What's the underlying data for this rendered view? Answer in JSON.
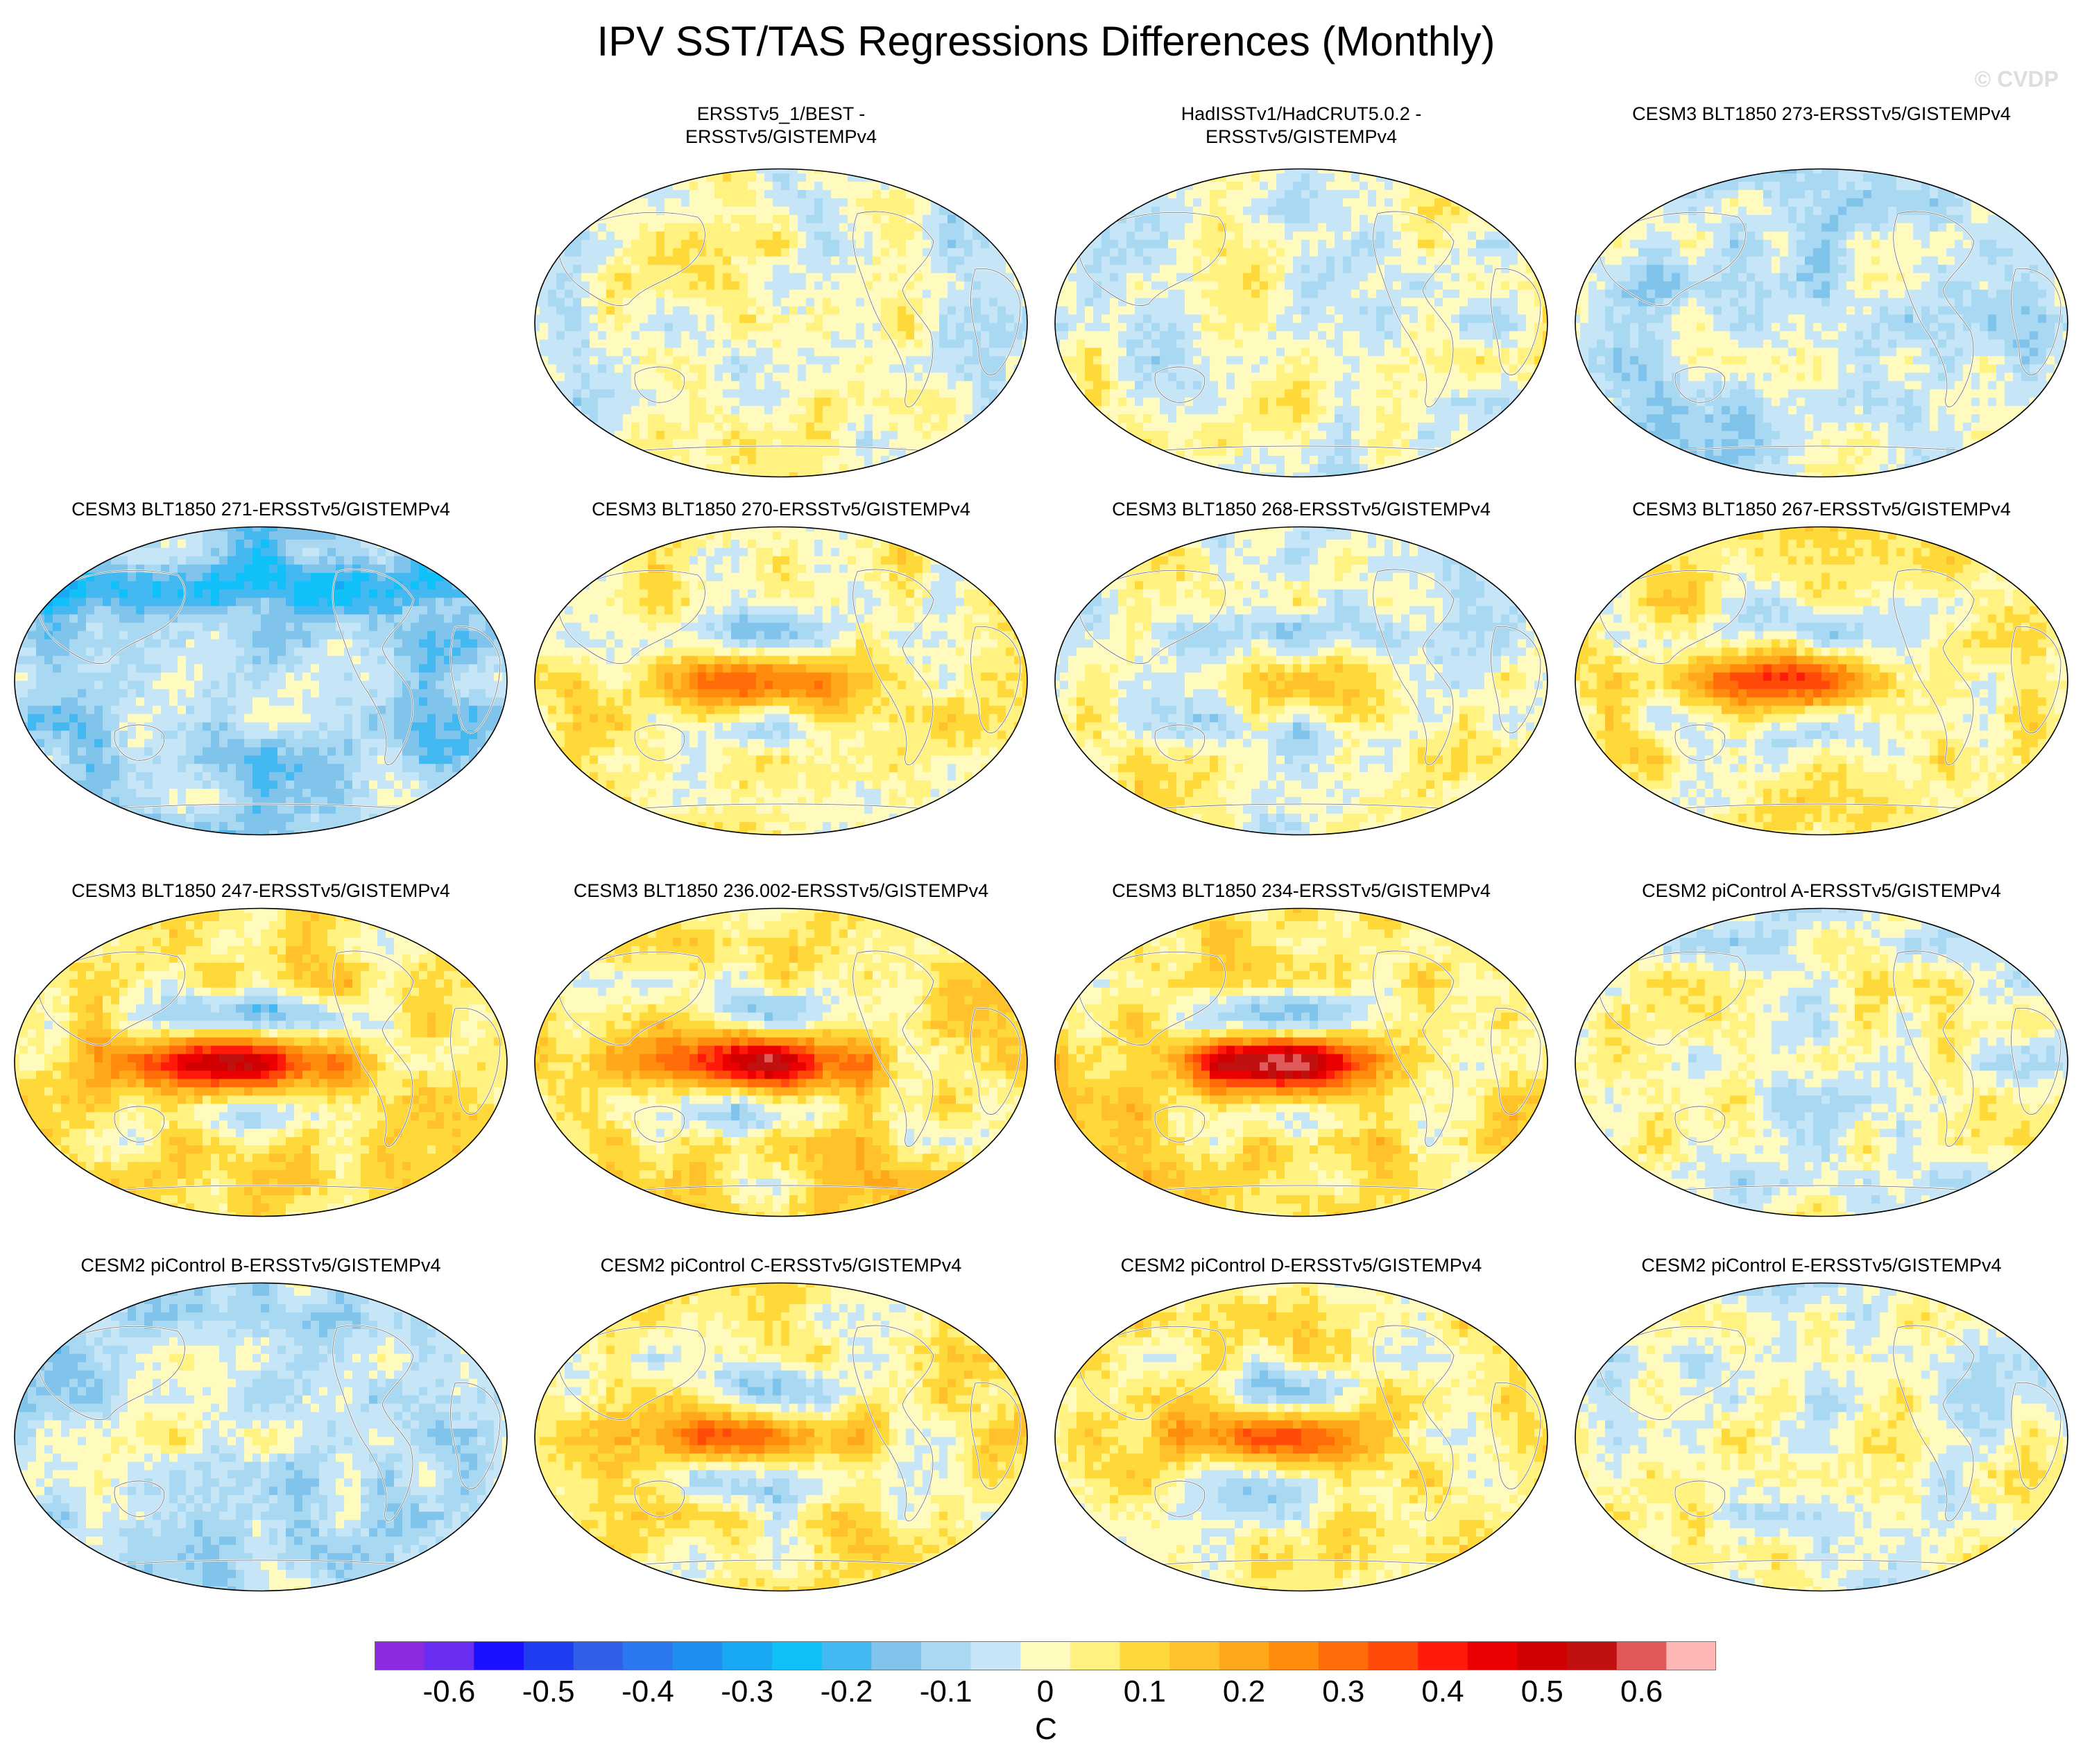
{
  "title": "IPV SST/TAS Regressions Differences (Monthly)",
  "watermark": "© CVDP",
  "panels": [
    {
      "title": "ERSSTv5_1/BEST -\nERSSTv5/GISTEMPv4",
      "pattern": "weak-mixed",
      "seed": 11
    },
    {
      "title": "HadISSTv1/HadCRUT5.0.2 -\nERSSTv5/GISTEMPv4",
      "pattern": "weak-mixed-masked",
      "seed": 23
    },
    {
      "title": "CESM3 BLT1850 273-ERSSTv5/GISTEMPv4",
      "pattern": "weak-cool",
      "seed": 37
    },
    {
      "title": "CESM3 BLT1850 271-ERSSTv5/GISTEMPv4",
      "pattern": "cool",
      "seed": 41
    },
    {
      "title": "CESM3 BLT1850 270-ERSSTv5/GISTEMPv4",
      "pattern": "moderate-warm",
      "seed": 53
    },
    {
      "title": "CESM3 BLT1850 268-ERSSTv5/GISTEMPv4",
      "pattern": "weak-warm",
      "seed": 67
    },
    {
      "title": "CESM3 BLT1850 267-ERSSTv5/GISTEMPv4",
      "pattern": "moderate-warm",
      "seed": 71
    },
    {
      "title": "CESM3 BLT1850 247-ERSSTv5/GISTEMPv4",
      "pattern": "strong-warm",
      "seed": 83
    },
    {
      "title": "CESM3 BLT1850 236.002-ERSSTv5/GISTEMPv4",
      "pattern": "strong-warm",
      "seed": 97
    },
    {
      "title": "CESM3 BLT1850 234-ERSSTv5/GISTEMPv4",
      "pattern": "strong-warm",
      "seed": 101
    },
    {
      "title": "CESM2 piControl A-ERSSTv5/GISTEMPv4",
      "pattern": "weak-mixed",
      "seed": 113
    },
    {
      "title": "CESM2 piControl B-ERSSTv5/GISTEMPv4",
      "pattern": "weak-cool",
      "seed": 127
    },
    {
      "title": "CESM2 piControl C-ERSSTv5/GISTEMPv4",
      "pattern": "moderate-warm",
      "seed": 131
    },
    {
      "title": "CESM2 piControl D-ERSSTv5/GISTEMPv4",
      "pattern": "moderate-warm",
      "seed": 149
    },
    {
      "title": "CESM2 piControl E-ERSSTv5/GISTEMPv4",
      "pattern": "weak-mixed",
      "seed": 157
    }
  ],
  "colorbar": {
    "units": "C",
    "labels": [
      "-0.6",
      "-0.5",
      "-0.4",
      "-0.3",
      "-0.2",
      "-0.1",
      "0",
      "0.1",
      "0.2",
      "0.3",
      "0.4",
      "0.5",
      "0.6"
    ],
    "colors": [
      "#8a2be2",
      "#6a2ef0",
      "#1a10ff",
      "#1e3cf0",
      "#3060e8",
      "#2c78f0",
      "#2090f0",
      "#18a8f4",
      "#10c0f8",
      "#44b8f0",
      "#80c4ec",
      "#a8d8f2",
      "#c6e6f8",
      "#fffbbf",
      "#fff280",
      "#ffd83a",
      "#ffc22a",
      "#ffa81a",
      "#ff8c0c",
      "#ff6c08",
      "#ff4a0a",
      "#ff1a0a",
      "#ea0000",
      "#d00000",
      "#c01010",
      "#e05a5a",
      "#ffb6b6"
    ]
  }
}
